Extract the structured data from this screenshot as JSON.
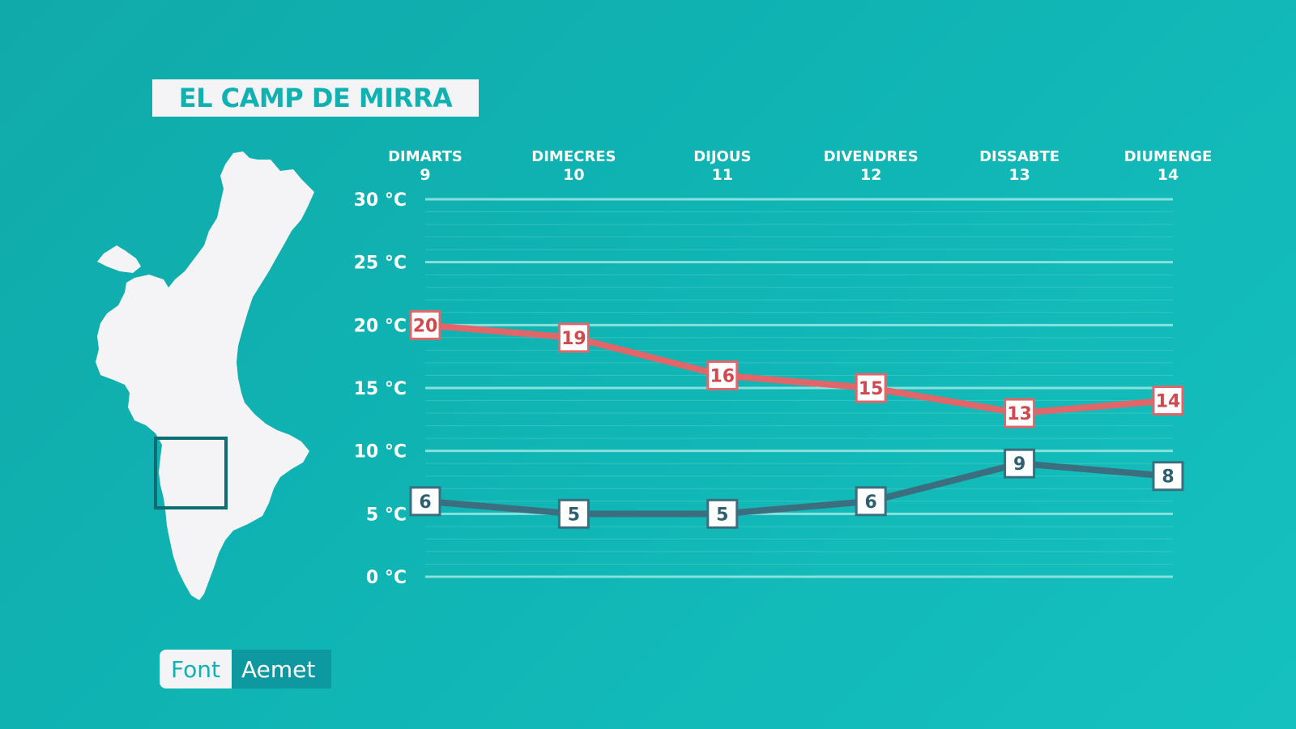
{
  "header": {
    "title": "EL CAMP DE MIRRA"
  },
  "source": {
    "label": "Font",
    "value": "Aemet"
  },
  "map": {
    "icon": "valencian-community-map-icon",
    "marker": "region-highlight-box"
  },
  "colors": {
    "background": "#11b3b2",
    "max_line": "#e0666a",
    "max_label": "#cf4a4f",
    "min_line": "#3b6f80",
    "min_label": "#2e5f70",
    "grid": "#9fe6e3",
    "map_fill": "#f4f4f7",
    "marker": "#0c6e73"
  },
  "chart_data": {
    "type": "line",
    "categories": [
      {
        "day": "DIMARTS",
        "date": "9"
      },
      {
        "day": "DIMECRES",
        "date": "10"
      },
      {
        "day": "DIJOUS",
        "date": "11"
      },
      {
        "day": "DIVENDRES",
        "date": "12"
      },
      {
        "day": "DISSABTE",
        "date": "13"
      },
      {
        "day": "DIUMENGE",
        "date": "14"
      }
    ],
    "series": [
      {
        "values": [
          20,
          19,
          16,
          15,
          13,
          14
        ],
        "color": "#e0666a"
      },
      {
        "values": [
          6,
          5,
          5,
          6,
          9,
          8
        ],
        "color": "#3b6f80"
      }
    ],
    "y_ticks": [
      "0 °C",
      "5 °C",
      "10 °C",
      "15 °C",
      "20 °C",
      "25 °C",
      "30 °C"
    ],
    "ylim": [
      0,
      30
    ],
    "grid": true
  }
}
